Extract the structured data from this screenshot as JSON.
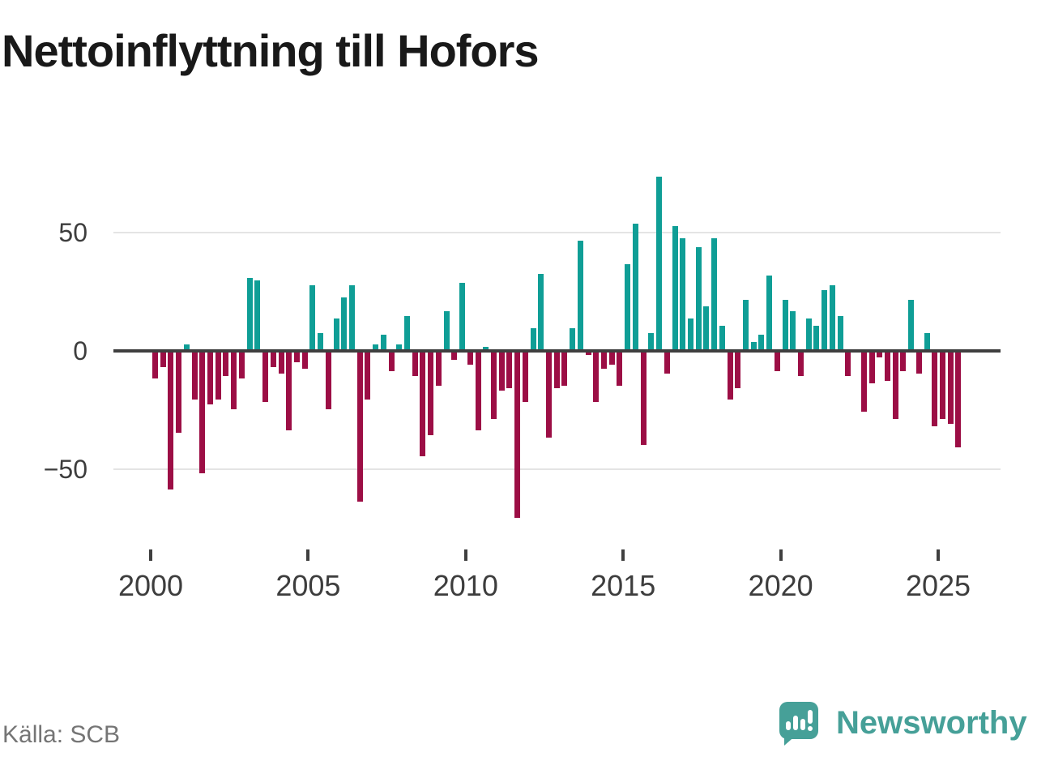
{
  "title": "Nettoinflyttning till Hofors",
  "source": "Källa: SCB",
  "logo": {
    "text": "Newsworthy"
  },
  "colors": {
    "positive": "#0f9e96",
    "negative": "#9c0e45",
    "axis": "#3f3f3f",
    "grid": "#e4e4e4",
    "logo": "#46a098"
  },
  "chart_data": {
    "type": "bar",
    "title": "Nettoinflyttning till Hofors",
    "xlabel": "",
    "ylabel": "",
    "start_year": 2000,
    "start_quarter": 1,
    "period": "quarterly",
    "x_ticks": [
      2000,
      2005,
      2010,
      2015,
      2020,
      2025
    ],
    "y_ticks": [
      {
        "label": "50",
        "value": 50
      },
      {
        "label": "0",
        "value": 0
      },
      {
        "label": "−50",
        "value": -50
      }
    ],
    "ylim": [
      -75,
      80
    ],
    "grid": "horizontal",
    "legend": "none",
    "values": [
      -11,
      -6,
      -58,
      -34,
      2,
      -20,
      -51,
      -22,
      -20,
      -10,
      -24,
      -11,
      30,
      29,
      -21,
      -6,
      -9,
      -33,
      -4,
      -7,
      27,
      7,
      -24,
      13,
      22,
      27,
      -63,
      -20,
      2,
      6,
      -8,
      2,
      14,
      -10,
      -44,
      -35,
      -14,
      16,
      -3,
      28,
      -5,
      -33,
      1,
      -28,
      -16,
      -15,
      -70,
      -21,
      9,
      32,
      -36,
      -15,
      -14,
      9,
      46,
      -1,
      -21,
      -7,
      -5,
      -14,
      36,
      53,
      -39,
      7,
      73,
      -9,
      52,
      47,
      13,
      43,
      18,
      47,
      10,
      -20,
      -15,
      21,
      3,
      6,
      31,
      -8,
      21,
      16,
      -10,
      13,
      10,
      25,
      27,
      14,
      -10,
      0,
      -25,
      -13,
      -2,
      -12,
      -28,
      -8,
      21,
      -9,
      7,
      -31,
      -28,
      -30,
      -40
    ]
  }
}
